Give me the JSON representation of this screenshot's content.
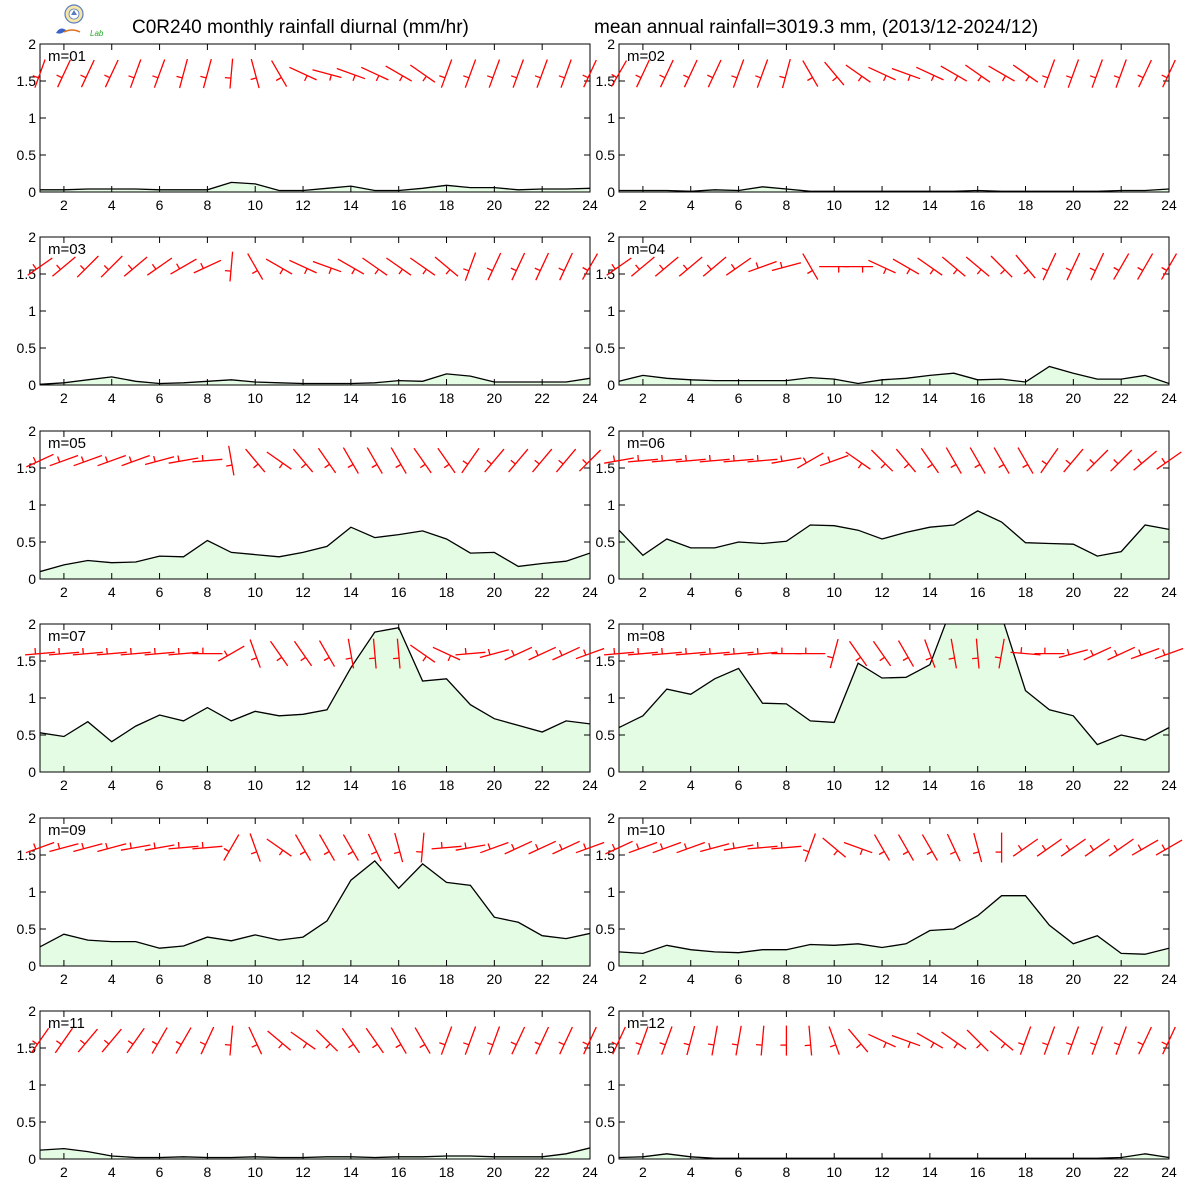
{
  "titles": {
    "left": "C0R240 monthly rainfall diurnal (mm/hr)",
    "right": "mean annual rainfall=3019.3 mm, (2013/12-2024/12)"
  },
  "logo": {
    "name": "lab-logo",
    "text": "Lab"
  },
  "colors": {
    "fill": "#e4fce4",
    "line": "#000000",
    "wind": "#ff0000",
    "frame": "#000000"
  },
  "chart_data": [
    {
      "type": "area",
      "label": "m=01",
      "x": [
        1,
        2,
        3,
        4,
        5,
        6,
        7,
        8,
        9,
        10,
        11,
        12,
        13,
        14,
        15,
        16,
        17,
        18,
        19,
        20,
        21,
        22,
        23,
        24
      ],
      "values": [
        0.03,
        0.03,
        0.04,
        0.04,
        0.04,
        0.03,
        0.03,
        0.03,
        0.13,
        0.11,
        0.02,
        0.02,
        0.05,
        0.08,
        0.02,
        0.02,
        0.05,
        0.09,
        0.06,
        0.06,
        0.03,
        0.04,
        0.04,
        0.05
      ],
      "ylim": [
        0,
        2
      ],
      "yticks": [
        0,
        0.5,
        1,
        1.5,
        2
      ],
      "xticks": [
        2,
        4,
        6,
        8,
        10,
        12,
        14,
        16,
        18,
        20,
        22,
        24
      ],
      "wind_dir": [
        200,
        205,
        205,
        205,
        200,
        200,
        195,
        195,
        185,
        165,
        150,
        115,
        105,
        110,
        115,
        120,
        125,
        200,
        200,
        200,
        200,
        200,
        200,
        205
      ]
    },
    {
      "type": "area",
      "label": "m=02",
      "x": [
        1,
        2,
        3,
        4,
        5,
        6,
        7,
        8,
        9,
        10,
        11,
        12,
        13,
        14,
        15,
        16,
        17,
        18,
        19,
        20,
        21,
        22,
        23,
        24
      ],
      "values": [
        0.02,
        0.02,
        0.02,
        0.01,
        0.03,
        0.02,
        0.07,
        0.04,
        0.01,
        0.01,
        0.01,
        0.01,
        0.01,
        0.01,
        0.01,
        0.02,
        0.01,
        0.01,
        0.01,
        0.01,
        0.01,
        0.02,
        0.02,
        0.04
      ],
      "ylim": [
        0,
        2
      ],
      "yticks": [
        0,
        0.5,
        1,
        1.5,
        2
      ],
      "xticks": [
        2,
        4,
        6,
        8,
        10,
        12,
        14,
        16,
        18,
        20,
        22,
        24
      ],
      "wind_dir": [
        210,
        205,
        205,
        205,
        205,
        200,
        200,
        195,
        150,
        140,
        125,
        115,
        110,
        115,
        120,
        125,
        120,
        125,
        200,
        200,
        200,
        200,
        205,
        205
      ]
    },
    {
      "type": "area",
      "label": "m=03",
      "x": [
        1,
        2,
        3,
        4,
        5,
        6,
        7,
        8,
        9,
        10,
        11,
        12,
        13,
        14,
        15,
        16,
        17,
        18,
        19,
        20,
        21,
        22,
        23,
        24
      ],
      "values": [
        0.01,
        0.03,
        0.07,
        0.11,
        0.05,
        0.02,
        0.03,
        0.05,
        0.07,
        0.04,
        0.03,
        0.02,
        0.02,
        0.02,
        0.03,
        0.06,
        0.05,
        0.15,
        0.12,
        0.04,
        0.04,
        0.04,
        0.04,
        0.09
      ],
      "ylim": [
        0,
        2
      ],
      "yticks": [
        0,
        0.5,
        1,
        1.5,
        2
      ],
      "xticks": [
        2,
        4,
        6,
        8,
        10,
        12,
        14,
        16,
        18,
        20,
        22,
        24
      ],
      "wind_dir": [
        235,
        230,
        225,
        225,
        230,
        235,
        240,
        245,
        185,
        150,
        120,
        115,
        110,
        120,
        125,
        125,
        125,
        130,
        200,
        205,
        205,
        205,
        205,
        210
      ]
    },
    {
      "type": "area",
      "label": "m=04",
      "x": [
        1,
        2,
        3,
        4,
        5,
        6,
        7,
        8,
        9,
        10,
        11,
        12,
        13,
        14,
        15,
        16,
        17,
        18,
        19,
        20,
        21,
        22,
        23,
        24
      ],
      "values": [
        0.05,
        0.13,
        0.09,
        0.07,
        0.06,
        0.06,
        0.06,
        0.06,
        0.1,
        0.08,
        0.02,
        0.07,
        0.09,
        0.13,
        0.16,
        0.07,
        0.08,
        0.04,
        0.25,
        0.16,
        0.08,
        0.08,
        0.13,
        0.02
      ],
      "ylim": [
        0,
        2
      ],
      "yticks": [
        0,
        0.5,
        1,
        1.5,
        2
      ],
      "xticks": [
        2,
        4,
        6,
        8,
        10,
        12,
        14,
        16,
        18,
        20,
        22,
        24
      ],
      "wind_dir": [
        235,
        230,
        230,
        230,
        230,
        235,
        250,
        255,
        150,
        90,
        90,
        115,
        120,
        125,
        130,
        130,
        135,
        140,
        205,
        205,
        205,
        210,
        210,
        210
      ]
    },
    {
      "type": "area",
      "label": "m=05",
      "x": [
        1,
        2,
        3,
        4,
        5,
        6,
        7,
        8,
        9,
        10,
        11,
        12,
        13,
        14,
        15,
        16,
        17,
        18,
        19,
        20,
        21,
        22,
        23,
        24
      ],
      "values": [
        0.1,
        0.19,
        0.25,
        0.22,
        0.23,
        0.31,
        0.3,
        0.52,
        0.36,
        0.33,
        0.3,
        0.36,
        0.44,
        0.7,
        0.56,
        0.6,
        0.65,
        0.54,
        0.35,
        0.36,
        0.17,
        0.21,
        0.24,
        0.35
      ],
      "ylim": [
        0,
        2
      ],
      "yticks": [
        0,
        0.5,
        1,
        1.5,
        2
      ],
      "xticks": [
        2,
        4,
        6,
        8,
        10,
        12,
        14,
        16,
        18,
        20,
        22,
        24
      ],
      "wind_dir": [
        245,
        250,
        250,
        250,
        250,
        255,
        260,
        265,
        170,
        140,
        125,
        140,
        145,
        150,
        150,
        150,
        145,
        145,
        215,
        220,
        220,
        220,
        220,
        225
      ]
    },
    {
      "type": "area",
      "label": "m=06",
      "x": [
        1,
        2,
        3,
        4,
        5,
        6,
        7,
        8,
        9,
        10,
        11,
        12,
        13,
        14,
        15,
        16,
        17,
        18,
        19,
        20,
        21,
        22,
        23,
        24
      ],
      "values": [
        0.66,
        0.32,
        0.54,
        0.42,
        0.42,
        0.5,
        0.48,
        0.51,
        0.73,
        0.72,
        0.66,
        0.54,
        0.63,
        0.7,
        0.73,
        0.92,
        0.77,
        0.49,
        0.48,
        0.47,
        0.31,
        0.37,
        0.73,
        0.67
      ],
      "ylim": [
        0,
        2
      ],
      "yticks": [
        0,
        0.5,
        1,
        1.5,
        2
      ],
      "xticks": [
        2,
        4,
        6,
        8,
        10,
        12,
        14,
        16,
        18,
        20,
        22,
        24
      ],
      "wind_dir": [
        260,
        265,
        265,
        265,
        265,
        265,
        265,
        260,
        240,
        250,
        125,
        135,
        140,
        145,
        150,
        150,
        150,
        150,
        215,
        220,
        225,
        225,
        230,
        235
      ]
    },
    {
      "type": "area",
      "label": "m=07",
      "x": [
        1,
        2,
        3,
        4,
        5,
        6,
        7,
        8,
        9,
        10,
        11,
        12,
        13,
        14,
        15,
        16,
        17,
        18,
        19,
        20,
        21,
        22,
        23,
        24
      ],
      "values": [
        0.53,
        0.48,
        0.68,
        0.41,
        0.62,
        0.77,
        0.69,
        0.87,
        0.69,
        0.82,
        0.76,
        0.78,
        0.84,
        1.41,
        1.89,
        1.95,
        1.23,
        1.26,
        0.91,
        0.72,
        0.63,
        0.54,
        0.69,
        0.65
      ],
      "ylim": [
        0,
        2
      ],
      "yticks": [
        0,
        0.5,
        1,
        1.5,
        2
      ],
      "xticks": [
        2,
        4,
        6,
        8,
        10,
        12,
        14,
        16,
        18,
        20,
        22,
        24
      ],
      "wind_dir": [
        265,
        265,
        265,
        265,
        265,
        265,
        265,
        270,
        240,
        160,
        145,
        145,
        150,
        170,
        175,
        175,
        125,
        115,
        265,
        255,
        245,
        245,
        245,
        250
      ]
    },
    {
      "type": "area",
      "label": "m=08",
      "x": [
        1,
        2,
        3,
        4,
        5,
        6,
        7,
        8,
        9,
        10,
        11,
        12,
        13,
        14,
        15,
        16,
        17,
        18,
        19,
        20,
        21,
        22,
        23,
        24
      ],
      "values": [
        0.6,
        0.76,
        1.12,
        1.05,
        1.26,
        1.4,
        0.93,
        0.92,
        0.69,
        0.67,
        1.47,
        1.27,
        1.28,
        1.45,
        2.3,
        2.2,
        2.11,
        1.1,
        0.84,
        0.76,
        0.37,
        0.5,
        0.43,
        0.6
      ],
      "ylim": [
        0,
        2
      ],
      "yticks": [
        0,
        0.5,
        1,
        1.5,
        2
      ],
      "xticks": [
        2,
        4,
        6,
        8,
        10,
        12,
        14,
        16,
        18,
        20,
        22,
        24
      ],
      "wind_dir": [
        265,
        265,
        265,
        265,
        265,
        265,
        265,
        270,
        270,
        195,
        145,
        145,
        150,
        160,
        170,
        175,
        190,
        275,
        270,
        255,
        245,
        245,
        250,
        250
      ]
    },
    {
      "type": "area",
      "label": "m=09",
      "x": [
        1,
        2,
        3,
        4,
        5,
        6,
        7,
        8,
        9,
        10,
        11,
        12,
        13,
        14,
        15,
        16,
        17,
        18,
        19,
        20,
        21,
        22,
        23,
        24
      ],
      "values": [
        0.26,
        0.43,
        0.35,
        0.33,
        0.33,
        0.24,
        0.27,
        0.39,
        0.34,
        0.42,
        0.35,
        0.39,
        0.61,
        1.16,
        1.42,
        1.05,
        1.38,
        1.13,
        1.09,
        0.66,
        0.59,
        0.41,
        0.37,
        0.44
      ],
      "ylim": [
        0,
        2
      ],
      "yticks": [
        0,
        0.5,
        1,
        1.5,
        2
      ],
      "xticks": [
        2,
        4,
        6,
        8,
        10,
        12,
        14,
        16,
        18,
        20,
        22,
        24
      ],
      "wind_dir": [
        250,
        255,
        255,
        255,
        260,
        260,
        265,
        265,
        210,
        160,
        125,
        150,
        150,
        150,
        155,
        165,
        185,
        265,
        260,
        250,
        245,
        245,
        245,
        250
      ]
    },
    {
      "type": "area",
      "label": "m=10",
      "x": [
        1,
        2,
        3,
        4,
        5,
        6,
        7,
        8,
        9,
        10,
        11,
        12,
        13,
        14,
        15,
        16,
        17,
        18,
        19,
        20,
        21,
        22,
        23,
        24
      ],
      "values": [
        0.19,
        0.17,
        0.28,
        0.22,
        0.19,
        0.18,
        0.22,
        0.22,
        0.29,
        0.28,
        0.3,
        0.25,
        0.3,
        0.48,
        0.5,
        0.68,
        0.95,
        0.95,
        0.55,
        0.3,
        0.41,
        0.17,
        0.16,
        0.24
      ],
      "ylim": [
        0,
        2
      ],
      "yticks": [
        0,
        0.5,
        1,
        1.5,
        2
      ],
      "xticks": [
        2,
        4,
        6,
        8,
        10,
        12,
        14,
        16,
        18,
        20,
        22,
        24
      ],
      "wind_dir": [
        245,
        250,
        250,
        250,
        255,
        260,
        265,
        265,
        200,
        130,
        110,
        150,
        150,
        150,
        155,
        165,
        180,
        235,
        235,
        235,
        235,
        235,
        240,
        240
      ]
    },
    {
      "type": "area",
      "label": "m=11",
      "x": [
        1,
        2,
        3,
        4,
        5,
        6,
        7,
        8,
        9,
        10,
        11,
        12,
        13,
        14,
        15,
        16,
        17,
        18,
        19,
        20,
        21,
        22,
        23,
        24
      ],
      "values": [
        0.12,
        0.14,
        0.1,
        0.04,
        0.02,
        0.02,
        0.03,
        0.02,
        0.02,
        0.03,
        0.02,
        0.02,
        0.03,
        0.03,
        0.02,
        0.03,
        0.03,
        0.04,
        0.04,
        0.03,
        0.03,
        0.03,
        0.07,
        0.15
      ],
      "ylim": [
        0,
        2
      ],
      "yticks": [
        0,
        0.5,
        1,
        1.5,
        2
      ],
      "xticks": [
        2,
        4,
        6,
        8,
        10,
        12,
        14,
        16,
        18,
        20,
        22,
        24
      ],
      "wind_dir": [
        215,
        215,
        220,
        220,
        215,
        210,
        210,
        205,
        185,
        155,
        130,
        125,
        135,
        145,
        145,
        150,
        150,
        200,
        200,
        200,
        205,
        205,
        205,
        205
      ]
    },
    {
      "type": "area",
      "label": "m=12",
      "x": [
        1,
        2,
        3,
        4,
        5,
        6,
        7,
        8,
        9,
        10,
        11,
        12,
        13,
        14,
        15,
        16,
        17,
        18,
        19,
        20,
        21,
        22,
        23,
        24
      ],
      "values": [
        0.02,
        0.03,
        0.07,
        0.03,
        0.01,
        0.01,
        0.01,
        0.01,
        0.01,
        0.01,
        0.01,
        0.01,
        0.01,
        0.01,
        0.01,
        0.01,
        0.01,
        0.01,
        0.01,
        0.01,
        0.01,
        0.02,
        0.07,
        0.02
      ],
      "ylim": [
        0,
        2
      ],
      "yticks": [
        0,
        0.5,
        1,
        1.5,
        2
      ],
      "xticks": [
        2,
        4,
        6,
        8,
        10,
        12,
        14,
        16,
        18,
        20,
        22,
        24
      ],
      "wind_dir": [
        205,
        200,
        200,
        195,
        190,
        190,
        185,
        180,
        175,
        160,
        140,
        115,
        110,
        120,
        125,
        135,
        130,
        200,
        200,
        200,
        200,
        200,
        205,
        205
      ]
    }
  ]
}
